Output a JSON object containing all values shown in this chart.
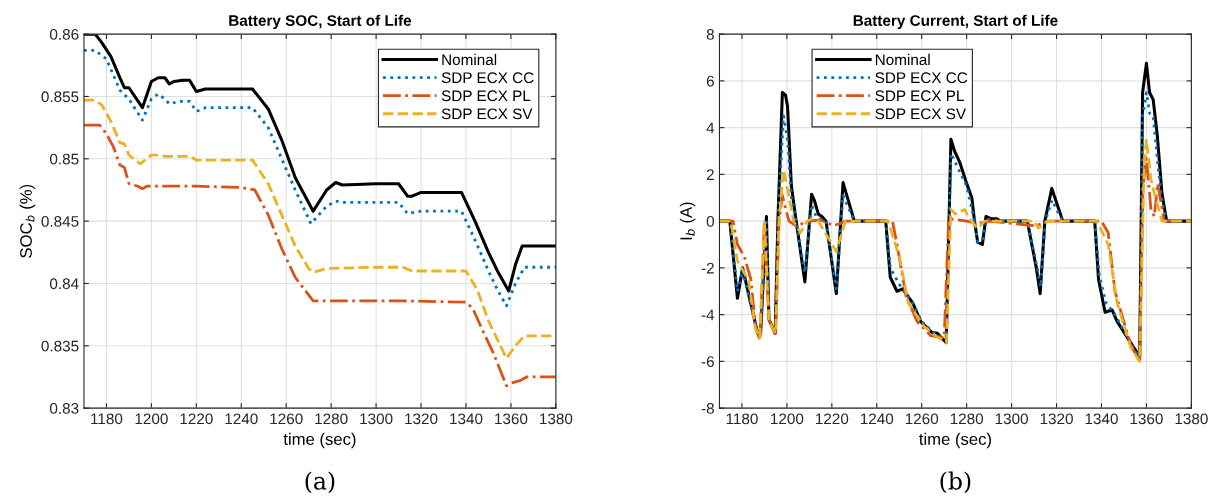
{
  "chart_data": [
    {
      "type": "line",
      "title": "Battery SOC, Start of Life",
      "xlabel": "time (sec)",
      "ylabel": "SOC$_{b}$ (%)",
      "xlim": [
        1170,
        1380
      ],
      "xticks": [
        1180,
        1200,
        1220,
        1240,
        1260,
        1280,
        1300,
        1320,
        1340,
        1360,
        1380
      ],
      "ylim": [
        0.83,
        0.86
      ],
      "yticks": [
        0.83,
        0.835,
        0.84,
        0.845,
        0.85,
        0.855,
        0.86
      ],
      "grid": true,
      "legend": "top right",
      "annotations": [
        "(a)"
      ],
      "series": [
        {
          "name": "Nominal",
          "color": "#000000",
          "line_style": "solid",
          "x": [
            1170,
            1175,
            1178,
            1182,
            1186,
            1188,
            1190,
            1196,
            1200,
            1203,
            1206,
            1208,
            1210,
            1214,
            1217,
            1220,
            1224,
            1245,
            1252,
            1258,
            1264,
            1272,
            1278,
            1282,
            1285,
            1300,
            1310,
            1314,
            1316,
            1320,
            1338,
            1344,
            1350,
            1354,
            1359,
            1362,
            1365,
            1380
          ],
          "values": [
            0.86,
            0.86,
            0.8593,
            0.8582,
            0.8565,
            0.8557,
            0.8557,
            0.8541,
            0.8562,
            0.8565,
            0.8565,
            0.856,
            0.8562,
            0.8563,
            0.8563,
            0.8554,
            0.8556,
            0.8556,
            0.854,
            0.8515,
            0.8485,
            0.8458,
            0.8475,
            0.8481,
            0.8479,
            0.848,
            0.848,
            0.847,
            0.847,
            0.8473,
            0.8473,
            0.845,
            0.8425,
            0.841,
            0.8394,
            0.8415,
            0.843,
            0.843
          ]
        },
        {
          "name": "SDP ECX CC",
          "color": "#0072bd",
          "line_style": "dotted",
          "x": [
            1170,
            1175,
            1180,
            1186,
            1190,
            1196,
            1200,
            1203,
            1206,
            1208,
            1212,
            1217,
            1220,
            1224,
            1245,
            1252,
            1258,
            1264,
            1271,
            1278,
            1282,
            1285,
            1310,
            1314,
            1317,
            1320,
            1338,
            1344,
            1350,
            1354,
            1358,
            1362,
            1366,
            1380
          ],
          "values": [
            0.8587,
            0.8587,
            0.858,
            0.8555,
            0.8548,
            0.8531,
            0.8548,
            0.8552,
            0.8548,
            0.8544,
            0.8546,
            0.8546,
            0.8538,
            0.8541,
            0.8541,
            0.8525,
            0.85,
            0.8475,
            0.8448,
            0.8462,
            0.8466,
            0.8465,
            0.8465,
            0.8456,
            0.8457,
            0.8458,
            0.8458,
            0.8435,
            0.841,
            0.8395,
            0.8382,
            0.84,
            0.8413,
            0.8413
          ]
        },
        {
          "name": "SDP ECX PL",
          "color": "#d95319",
          "line_style": "dashdot",
          "x": [
            1170,
            1177,
            1180,
            1183,
            1186,
            1188,
            1190,
            1194,
            1196,
            1198,
            1220,
            1240,
            1246,
            1252,
            1258,
            1264,
            1272,
            1290,
            1312,
            1340,
            1343,
            1348,
            1352,
            1358,
            1360,
            1364,
            1367,
            1380
          ],
          "values": [
            0.8527,
            0.8527,
            0.852,
            0.851,
            0.8495,
            0.8493,
            0.848,
            0.8478,
            0.8476,
            0.8478,
            0.8478,
            0.8477,
            0.8475,
            0.8455,
            0.8428,
            0.8405,
            0.8386,
            0.8386,
            0.8386,
            0.8385,
            0.838,
            0.836,
            0.8345,
            0.8318,
            0.832,
            0.8322,
            0.8325,
            0.8325
          ]
        },
        {
          "name": "SDP ECX SV",
          "color": "#edb120",
          "line_style": "dashed",
          "x": [
            1170,
            1175,
            1178,
            1182,
            1186,
            1188,
            1190,
            1195,
            1200,
            1203,
            1206,
            1217,
            1220,
            1245,
            1252,
            1258,
            1264,
            1270,
            1272,
            1278,
            1300,
            1312,
            1316,
            1340,
            1345,
            1350,
            1354,
            1358,
            1362,
            1366,
            1380
          ],
          "values": [
            0.8547,
            0.8547,
            0.8543,
            0.853,
            0.8513,
            0.8512,
            0.8503,
            0.8496,
            0.8503,
            0.8503,
            0.8502,
            0.8502,
            0.8499,
            0.8499,
            0.848,
            0.8455,
            0.843,
            0.8412,
            0.8409,
            0.8412,
            0.8413,
            0.8413,
            0.841,
            0.841,
            0.8395,
            0.837,
            0.8355,
            0.834,
            0.835,
            0.8358,
            0.8358
          ]
        }
      ]
    },
    {
      "type": "line",
      "title": "Battery Current, Start of Life",
      "xlabel": "time (sec)",
      "ylabel": "I$_{b}$ (A)",
      "xlim": [
        1170,
        1380
      ],
      "xticks": [
        1180,
        1200,
        1220,
        1240,
        1260,
        1280,
        1300,
        1320,
        1340,
        1360,
        1380
      ],
      "ylim": [
        -8,
        8
      ],
      "yticks": [
        -8,
        -6,
        -4,
        -2,
        0,
        2,
        4,
        6,
        8
      ],
      "grid": true,
      "legend": "top left",
      "annotations": [
        "(b)"
      ],
      "series": [
        {
          "name": "Nominal",
          "color": "#000000",
          "line_style": "solid",
          "x": [
            1170,
            1174.6,
            1178,
            1180.3,
            1187,
            1188.3,
            1190.9,
            1192,
            1194.8,
            1196,
            1198,
            1199.4,
            1200.3,
            1202,
            1203.7,
            1208,
            1211,
            1212.2,
            1214,
            1215.6,
            1217.4,
            1222,
            1225,
            1230,
            1244,
            1246,
            1249,
            1251.5,
            1256,
            1259.6,
            1264.4,
            1267,
            1270.9,
            1273,
            1274.6,
            1277,
            1279.7,
            1282.3,
            1283.5,
            1284.9,
            1287,
            1288.6,
            1291,
            1293.4,
            1295,
            1307,
            1311,
            1312.7,
            1314.8,
            1317.9,
            1320,
            1322.8,
            1337,
            1338.7,
            1341.6,
            1344.7,
            1347,
            1357,
            1358.3,
            1360,
            1361.4,
            1363,
            1364.8,
            1366.9,
            1369,
            1380
          ],
          "values": [
            0,
            0,
            -3.3,
            -2.0,
            -4.8,
            -4.8,
            0.2,
            -4.2,
            -4.8,
            0,
            5.5,
            5.4,
            4.9,
            1.5,
            0.3,
            -2.6,
            1.15,
            0.9,
            0.3,
            0.2,
            0,
            -3.1,
            1.65,
            0,
            0,
            -2.4,
            -3.0,
            -2.9,
            -3.5,
            -4.3,
            -4.75,
            -4.8,
            -5.2,
            3.5,
            3.0,
            2.5,
            1.7,
            1.0,
            0,
            -0.9,
            -1.0,
            0.2,
            0.1,
            0.1,
            0,
            0,
            -2,
            -3.1,
            0,
            1.4,
            0.8,
            0,
            0,
            -2.5,
            -3.9,
            -3.8,
            -4.3,
            -5.8,
            5.5,
            6.75,
            5.5,
            5.2,
            3.7,
            1.2,
            0,
            0
          ]
        },
        {
          "name": "SDP ECX CC",
          "color": "#0072bd",
          "line_style": "dotted",
          "x": [
            1170,
            1174.6,
            1178,
            1180.3,
            1187,
            1188.3,
            1190.9,
            1192,
            1194.8,
            1196,
            1198.5,
            1200.3,
            1202,
            1203.7,
            1208,
            1211,
            1213,
            1217.4,
            1222,
            1225,
            1230,
            1244,
            1246,
            1250,
            1256,
            1260,
            1265,
            1270.9,
            1273,
            1275,
            1280,
            1283.5,
            1285,
            1287,
            1289,
            1295,
            1307,
            1311,
            1313,
            1315,
            1318,
            1320,
            1322.8,
            1337,
            1339,
            1342,
            1346,
            1357,
            1358.3,
            1360,
            1361.5,
            1363,
            1365,
            1367,
            1369,
            1380
          ],
          "values": [
            0,
            0,
            -3.0,
            -2.1,
            -4.8,
            -4.8,
            0.1,
            -4.2,
            -4.8,
            0,
            4.5,
            3.5,
            1.0,
            0.2,
            -2.2,
            0.7,
            0.2,
            0,
            -2.9,
            1.1,
            0,
            0,
            -2.0,
            -2.7,
            -3.5,
            -4.3,
            -4.75,
            -5.1,
            2.9,
            2.5,
            1.5,
            0,
            -0.9,
            -0.8,
            0.1,
            0,
            0,
            -1.8,
            -2.8,
            0,
            0.9,
            0.5,
            0,
            0,
            -2.3,
            -3.5,
            -4.0,
            -5.9,
            4.5,
            5.5,
            4.6,
            4.5,
            2.5,
            0.8,
            0,
            0
          ]
        },
        {
          "name": "SDP ECX PL",
          "color": "#d95319",
          "line_style": "dashdot",
          "x": [
            1170,
            1176,
            1178,
            1181,
            1184,
            1186,
            1188,
            1190,
            1192,
            1195,
            1196.5,
            1198,
            1199.5,
            1201,
            1204,
            1210,
            1215,
            1221,
            1226,
            1247,
            1249,
            1253,
            1258,
            1264,
            1270,
            1272,
            1280,
            1285,
            1290,
            1311,
            1316,
            1340,
            1343,
            1346,
            1353,
            1357,
            1358.5,
            1360,
            1362,
            1363.5,
            1365,
            1368,
            1380
          ],
          "values": [
            0,
            0,
            -1.0,
            -1.5,
            -2.5,
            -4.5,
            -5.1,
            0,
            -4.2,
            -4.9,
            0,
            1.1,
            0.5,
            0,
            -0.2,
            0,
            0.05,
            -0.2,
            0,
            0,
            -1,
            -3.2,
            -4.3,
            -4.9,
            -5.0,
            0.1,
            0,
            -0.1,
            0,
            -0.2,
            0,
            0,
            -0.5,
            -3,
            -5.3,
            -6.0,
            1.5,
            2.7,
            0.5,
            0.2,
            1.6,
            0,
            0
          ]
        },
        {
          "name": "SDP ECX SV",
          "color": "#edb120",
          "line_style": "dashed",
          "x": [
            1170,
            1175,
            1178,
            1181,
            1183,
            1186,
            1188,
            1190,
            1192,
            1195,
            1196.5,
            1198.5,
            1200,
            1203,
            1206,
            1209,
            1211,
            1214,
            1222,
            1226,
            1245,
            1250,
            1254,
            1261,
            1266,
            1271,
            1273,
            1275,
            1279,
            1282,
            1285,
            1288,
            1310,
            1312,
            1316,
            1338,
            1343,
            1347,
            1353,
            1357,
            1359,
            1360,
            1362,
            1364,
            1367,
            1380
          ],
          "values": [
            0,
            0,
            -1.7,
            -2.2,
            -2.6,
            -4.6,
            -5.0,
            0,
            -4.3,
            -4.8,
            0,
            2.2,
            1.5,
            0,
            -0.5,
            0,
            0.1,
            0,
            -1.3,
            0,
            0,
            -1.5,
            -3.5,
            -4.5,
            -4.9,
            -5.2,
            0.5,
            0.3,
            0.5,
            0,
            -0.3,
            0,
            0,
            -0.3,
            0,
            0,
            -1,
            -3.5,
            -5.4,
            -6.0,
            2.5,
            3.5,
            1.8,
            1.0,
            0,
            0
          ]
        }
      ]
    }
  ]
}
